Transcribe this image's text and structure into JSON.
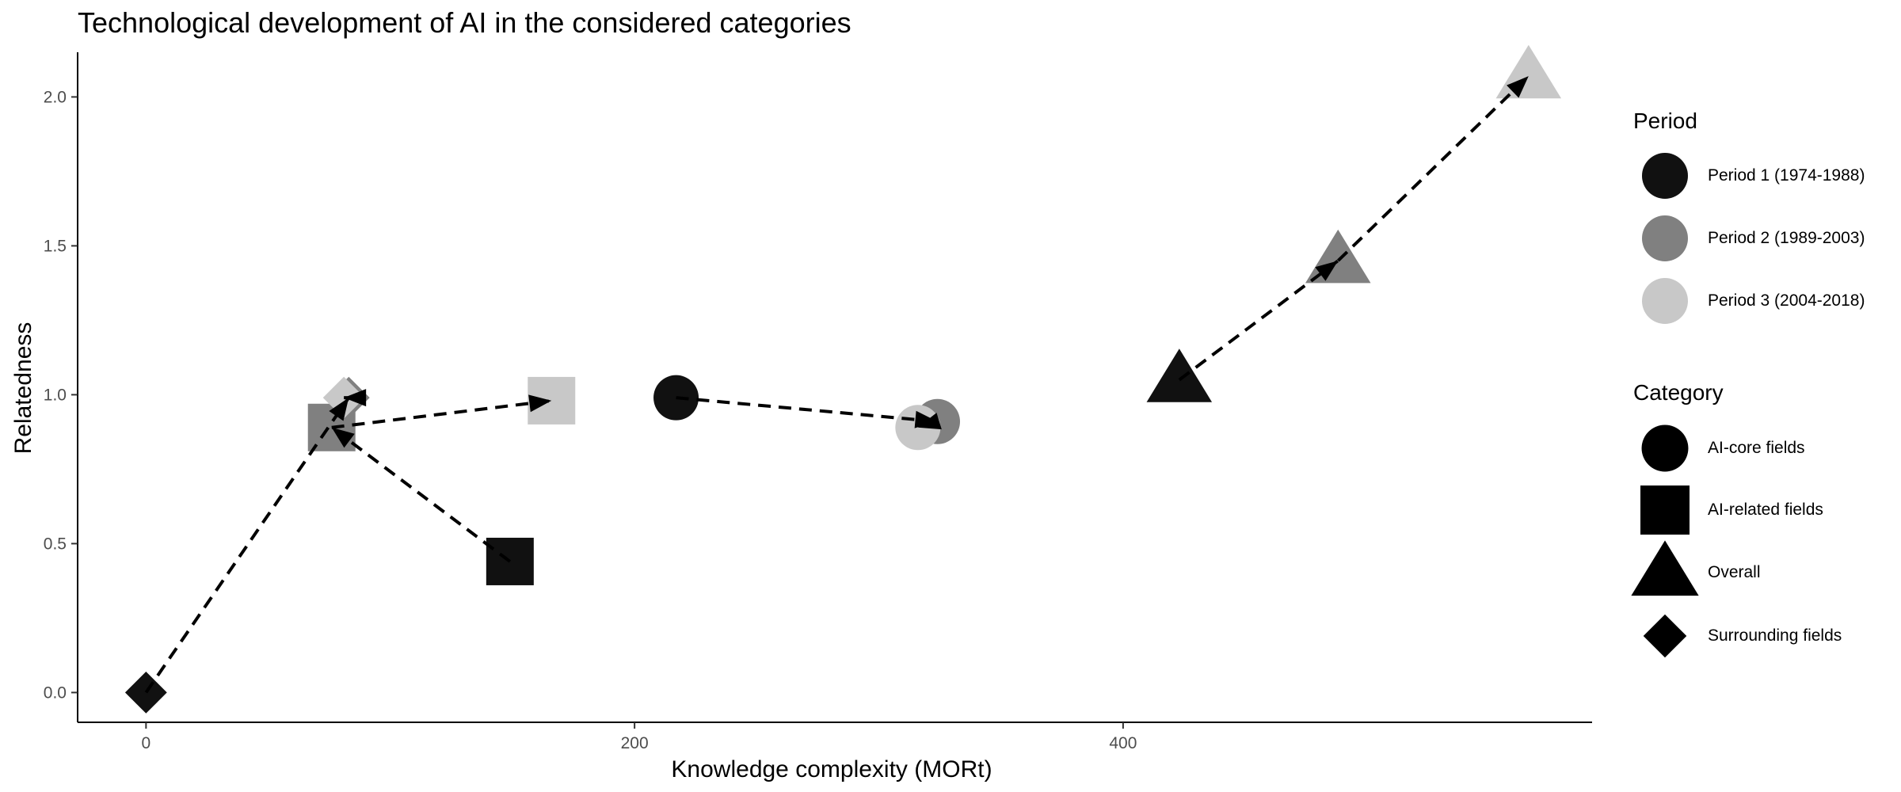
{
  "chart_data": {
    "type": "scatter",
    "title": "Technological development of AI in the considered categories",
    "xlabel": "Knowledge complexity (MORt)",
    "ylabel": "Relatedness",
    "xlim": [
      -28,
      592
    ],
    "ylim": [
      -0.1,
      2.15
    ],
    "x_ticks": [
      0,
      200,
      400
    ],
    "y_ticks": [
      0.0,
      0.5,
      1.0,
      1.5,
      2.0
    ],
    "x_tick_labels": [
      "0",
      "200",
      "400"
    ],
    "y_tick_labels": [
      "0.0",
      "0.5",
      "1.0",
      "1.5",
      "2.0"
    ],
    "grid": false,
    "legend_position": "right",
    "periods": [
      {
        "name": "Period 1 (1974-1988)",
        "color": "#111111"
      },
      {
        "name": "Period 2 (1989-2003)",
        "color": "#808080"
      },
      {
        "name": "Period 3 (2004-2018)",
        "color": "#c8c8c8"
      }
    ],
    "categories": [
      {
        "name": "AI-core fields",
        "shape": "circle"
      },
      {
        "name": "AI-related fields",
        "shape": "square"
      },
      {
        "name": "Overall",
        "shape": "triangle"
      },
      {
        "name": "Surrounding fields",
        "shape": "diamond"
      }
    ],
    "series": [
      {
        "category": "AI-core fields",
        "shape": "circle",
        "points": [
          {
            "period": 1,
            "x": 217,
            "y": 0.99
          },
          {
            "period": 2,
            "x": 324,
            "y": 0.91
          },
          {
            "period": 3,
            "x": 316,
            "y": 0.89
          }
        ]
      },
      {
        "category": "AI-related fields",
        "shape": "square",
        "points": [
          {
            "period": 1,
            "x": 149,
            "y": 0.44
          },
          {
            "period": 2,
            "x": 76,
            "y": 0.89
          },
          {
            "period": 3,
            "x": 166,
            "y": 0.98
          }
        ]
      },
      {
        "category": "Overall",
        "shape": "triangle",
        "points": [
          {
            "period": 1,
            "x": 423,
            "y": 1.05
          },
          {
            "period": 2,
            "x": 488,
            "y": 1.45
          },
          {
            "period": 3,
            "x": 566,
            "y": 2.07
          }
        ]
      },
      {
        "category": "Surrounding fields",
        "shape": "diamond",
        "points": [
          {
            "period": 1,
            "x": 0,
            "y": 0.0
          },
          {
            "period": 2,
            "x": 83,
            "y": 0.99
          },
          {
            "period": 3,
            "x": 81,
            "y": 0.99
          }
        ]
      }
    ]
  }
}
